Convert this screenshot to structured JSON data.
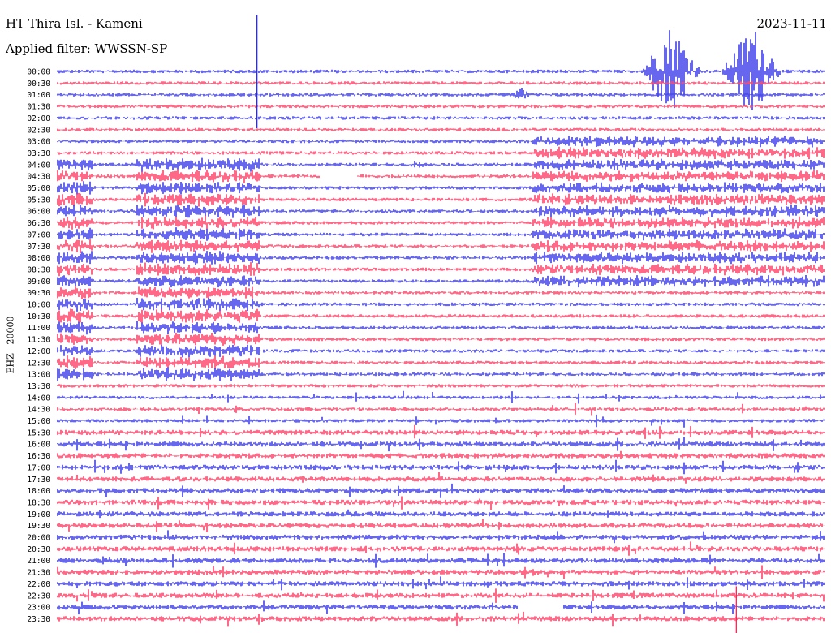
{
  "header": {
    "station": "HT Thira Isl. - Kameni",
    "filter": "Applied filter: WWSSN-SP",
    "date": "2023-11-11",
    "channel": "EHZ - 20000"
  },
  "colors": {
    "odd_rows": "#1414e6",
    "even_rows": "#ff1744",
    "background": "#ffffff"
  },
  "chart_data": {
    "type": "helicorder",
    "title": "HT Thira Isl. - Kameni",
    "ylabel": "EHZ - 20000",
    "row_interval_minutes": 30,
    "tick_labels": [
      "00:00",
      "00:30",
      "01:00",
      "01:30",
      "02:00",
      "02:30",
      "03:00",
      "03:30",
      "04:00",
      "04:30",
      "05:00",
      "05:30",
      "06:00",
      "06:30",
      "07:00",
      "07:30",
      "08:00",
      "08:30",
      "09:00",
      "09:30",
      "10:00",
      "10:30",
      "11:00",
      "11:30",
      "12:00",
      "12:30",
      "13:00",
      "13:30",
      "14:00",
      "14:30",
      "15:00",
      "15:30",
      "16:00",
      "16:30",
      "17:00",
      "17:30",
      "18:00",
      "18:30",
      "19:00",
      "19:30",
      "20:00",
      "20:30",
      "21:00",
      "21:30",
      "22:00",
      "22:30",
      "23:00",
      "23:30"
    ],
    "series_colors": [
      "#1414e6",
      "#ff1744"
    ],
    "x_range": [
      0,
      1
    ],
    "events": [
      {
        "type": "noise_block",
        "row_start": 8,
        "row_end": 26,
        "x_start": 0.0,
        "x_end": 0.045,
        "amplitude": 7
      },
      {
        "type": "noise_block",
        "row_start": 8,
        "row_end": 26,
        "x_start": 0.103,
        "x_end": 0.263,
        "amplitude": 7
      },
      {
        "type": "noise_block",
        "row_start": 6,
        "row_end": 18,
        "x_start": 0.62,
        "x_end": 1.0,
        "amplitude": 6
      },
      {
        "type": "burst",
        "row": 0,
        "x": 0.8,
        "width": 0.04,
        "amplitude": 60
      },
      {
        "type": "burst",
        "row": 0,
        "x": 0.905,
        "width": 0.04,
        "amplitude": 60
      },
      {
        "type": "spike",
        "row": 0,
        "x": 0.26,
        "amplitude": 70
      },
      {
        "type": "spike",
        "row": 47,
        "x": 0.885,
        "amplitude": 40
      },
      {
        "type": "burst",
        "row": 2,
        "x": 0.605,
        "width": 0.02,
        "amplitude": 8
      },
      {
        "type": "burst",
        "row": 8,
        "x": 0.47,
        "width": 0.015,
        "amplitude": 6
      },
      {
        "type": "gap",
        "row": 9,
        "x_start": 0.341,
        "x_end": 0.39
      },
      {
        "type": "gap",
        "row": 46,
        "x_start": 0.6,
        "x_end": 0.66
      }
    ]
  }
}
